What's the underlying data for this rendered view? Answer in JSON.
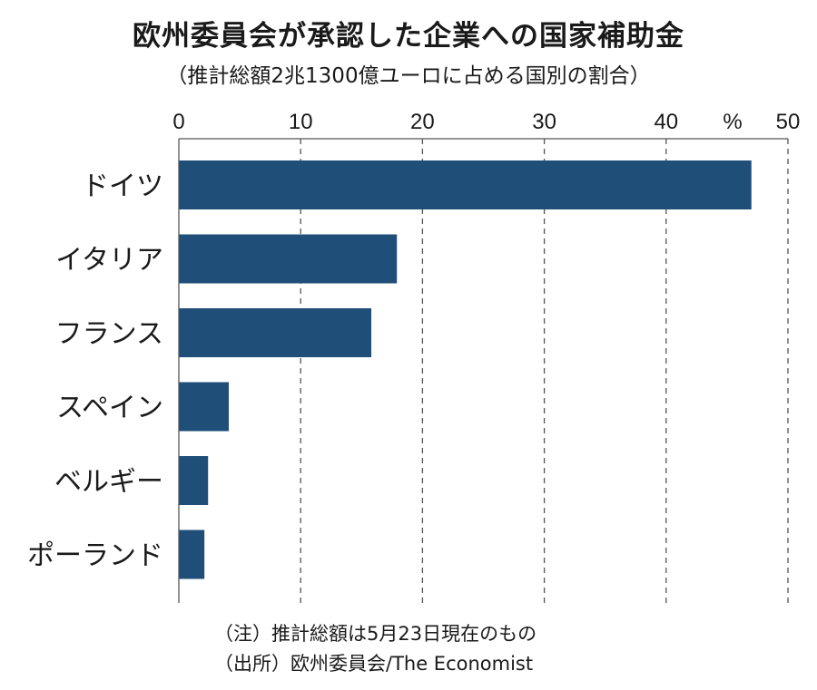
{
  "chart_data": {
    "type": "bar",
    "orientation": "horizontal",
    "title": "欧州委員会が承認した企業への国家補助金",
    "subtitle": "（推計総額2兆1300億ユーロに占める国別の割合）",
    "unit": "%",
    "categories": [
      "ドイツ",
      "イタリア",
      "フランス",
      "スペイン",
      "ベルギー",
      "ポーランド"
    ],
    "values": [
      47.0,
      17.9,
      15.8,
      4.1,
      2.4,
      2.1
    ],
    "xlim": [
      0,
      50
    ],
    "xticks": [
      "0",
      "10",
      "20",
      "30",
      "40",
      "50"
    ],
    "grid": "vertical-dashed",
    "bar_color": "#1f4e79"
  },
  "notes": {
    "note": "（注）推計総額は5月23日現在のもの",
    "source": "（出所）欧州委員会/The Economist"
  }
}
